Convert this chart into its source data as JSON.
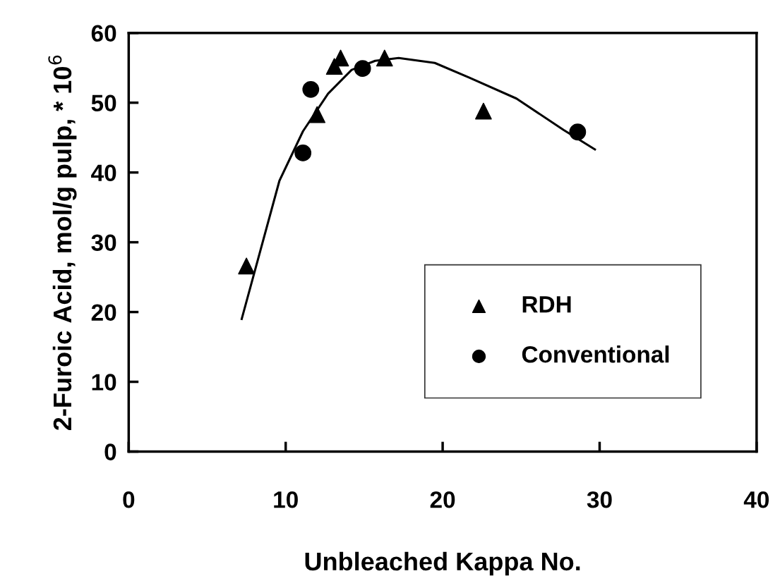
{
  "chart_data": {
    "type": "scatter",
    "xlabel": "Unbleached Kappa No.",
    "ylabel": "2-Furoic Acid, mol/g pulp, * 10$^{6}$",
    "xlim": [
      0,
      40
    ],
    "xticks": [
      0,
      10,
      20,
      30,
      40
    ],
    "ylim": [
      0,
      60
    ],
    "yticks": [
      0,
      10,
      20,
      30,
      40,
      50,
      60
    ],
    "grid": false,
    "legend": "bottom right",
    "series": [
      {
        "name": "RDH",
        "color": "#000000",
        "marker": "triangle",
        "x": [
          7.5,
          12.0,
          13.1,
          13.5,
          16.3,
          22.6
        ],
        "values": [
          26.6,
          48.3,
          55.2,
          56.4,
          56.4,
          48.8
        ]
      },
      {
        "name": "Conventional",
        "color": "#000000",
        "marker": "circle",
        "x": [
          11.1,
          11.6,
          14.9,
          28.6
        ],
        "values": [
          42.8,
          51.9,
          54.9,
          45.8
        ]
      },
      {
        "type": "line",
        "color": "#000000",
        "marker": "none",
        "x": [
          7.2,
          8.0,
          9.6,
          11.1,
          12.7,
          14.2,
          15.7,
          17.2,
          19.5,
          21.7,
          24.7,
          27.7,
          29.7
        ],
        "values": [
          19.0,
          25.6,
          38.8,
          45.9,
          51.3,
          54.7,
          56.0,
          56.4,
          55.7,
          53.6,
          50.6,
          46.1,
          43.3
        ]
      }
    ]
  }
}
